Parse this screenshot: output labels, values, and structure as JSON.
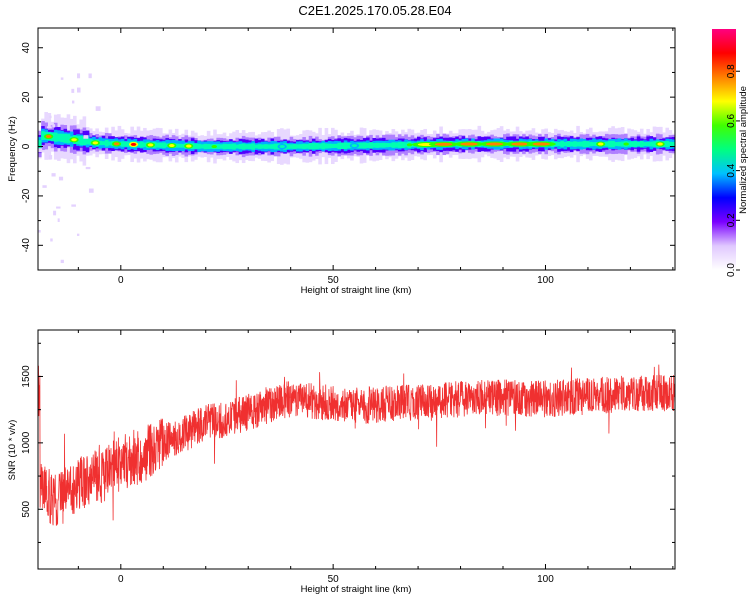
{
  "title": "C2E1.2025.170.05.28.E04",
  "chart_data": [
    {
      "type": "heatmap",
      "xlabel": "Height of straight line (km)",
      "ylabel": "Frequency (Hz)",
      "xlim": [
        -19.5,
        130.5
      ],
      "ylim": [
        -50,
        48
      ],
      "xticks": [
        0,
        50,
        100
      ],
      "yticks": [
        -40,
        -20,
        0,
        20,
        40
      ],
      "ridge_frequency": [
        [
          -19,
          4.5
        ],
        [
          -12,
          3
        ],
        [
          -6,
          1.5
        ],
        [
          0,
          1
        ],
        [
          20,
          0
        ],
        [
          40,
          0
        ],
        [
          60,
          0.5
        ],
        [
          80,
          1
        ],
        [
          100,
          1
        ],
        [
          115,
          1
        ],
        [
          130,
          1
        ]
      ],
      "colorbar": {
        "label": "Normalized spectral amplitude",
        "range": [
          0.0,
          0.97
        ],
        "ticks": [
          0.0,
          0.2,
          0.4,
          0.6,
          0.8
        ],
        "tick_labels": [
          "0.0",
          "0.2",
          "0.4",
          "0.6",
          "0.8"
        ],
        "colors": [
          "#ffffff",
          "#e0c8ff",
          "#7a00ff",
          "#0000ff",
          "#00c0ff",
          "#00ff80",
          "#40ff00",
          "#ffff00",
          "#ff8000",
          "#ff0000",
          "#ff0080"
        ]
      }
    },
    {
      "type": "line",
      "xlabel": "Height of straight line (km)",
      "ylabel": "SNR (10 * v/v)",
      "xlim": [
        -19.5,
        130.5
      ],
      "ylim": [
        50,
        1850
      ],
      "xticks": [
        0,
        50,
        100
      ],
      "yticks": [
        500,
        1000,
        1500
      ],
      "color": "#f03030",
      "trend": {
        "x": [
          -19,
          -15,
          -10,
          -5,
          0,
          5,
          10,
          15,
          20,
          25,
          30,
          35,
          40,
          45,
          50,
          55,
          60,
          65,
          70,
          75,
          80,
          85,
          90,
          95,
          100,
          105,
          110,
          115,
          120,
          125,
          130
        ],
        "y": [
          640,
          560,
          700,
          740,
          850,
          900,
          1000,
          1070,
          1150,
          1180,
          1230,
          1290,
          1330,
          1320,
          1300,
          1290,
          1280,
          1300,
          1300,
          1310,
          1330,
          1340,
          1340,
          1330,
          1330,
          1340,
          1350,
          1360,
          1370,
          1370,
          1380
        ]
      },
      "noise_amplitude": 140
    }
  ]
}
